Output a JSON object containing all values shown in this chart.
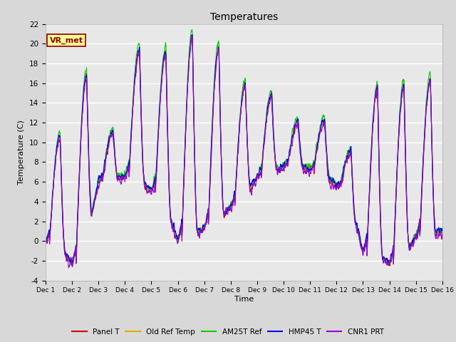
{
  "title": "Temperatures",
  "ylabel": "Temperature (C)",
  "xlabel": "Time",
  "ylim": [
    -4,
    22
  ],
  "annotation_text": "VR_met",
  "series_colors": {
    "Panel T": "#cc0000",
    "Old Ref Temp": "#ddaa00",
    "AM25T Ref": "#00cc00",
    "HMP45 T": "#0000ee",
    "CNR1 PRT": "#9900cc"
  },
  "xtick_labels": [
    "Dec 1",
    "Dec 2",
    "Dec 3",
    "Dec 4",
    "Dec 5",
    "Dec 6",
    "Dec 7",
    "Dec 8",
    "Dec 9",
    "Dec 10",
    "Dec 11",
    "Dec 12",
    "Dec 13",
    "Dec 14",
    "Dec 15",
    "Dec 16"
  ],
  "ytick_values": [
    -4,
    -2,
    0,
    2,
    4,
    6,
    8,
    10,
    12,
    14,
    16,
    18,
    20,
    22
  ],
  "background_color": "#d8d8d8",
  "plot_bg_color": "#e8e8e8",
  "linewidth": 0.8
}
